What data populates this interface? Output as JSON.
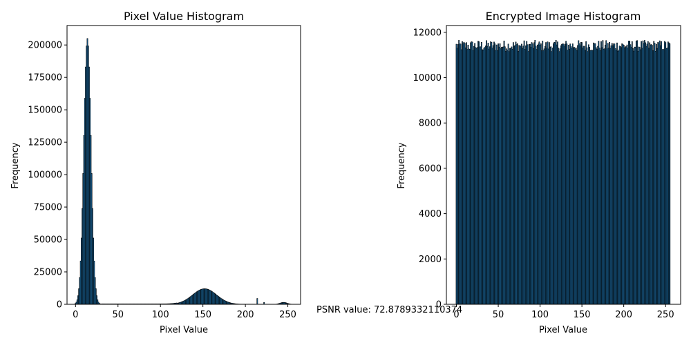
{
  "figure": {
    "psnr_label": "PSNR value: 72.87893321103​74"
  },
  "chart_data": [
    {
      "type": "bar",
      "title": "Pixel Value Histogram",
      "xlabel": "Pixel Value",
      "ylabel": "Frequency",
      "xlim": [
        -10,
        265
      ],
      "ylim": [
        0,
        215000
      ],
      "xticks": [
        0,
        50,
        100,
        150,
        200,
        250
      ],
      "yticks": [
        0,
        25000,
        50000,
        75000,
        100000,
        125000,
        150000,
        175000,
        200000
      ],
      "bar_color": "#1f77b4",
      "edge_color": "#000000",
      "peaks": [
        {
          "center": 14,
          "height": 205000,
          "width": 4.2
        },
        {
          "center": 152,
          "height": 12000,
          "width": 14
        },
        {
          "center": 245,
          "height": 1500,
          "width": 4
        }
      ],
      "spikes": [
        {
          "x": 214,
          "value": 4500
        },
        {
          "x": 222,
          "value": 1500
        }
      ],
      "baseline": 300
    },
    {
      "type": "bar",
      "title": "Encrypted Image Histogram",
      "xlabel": "Pixel Value",
      "ylabel": "Frequency",
      "xlim": [
        -12,
        268
      ],
      "ylim": [
        0,
        12300
      ],
      "xticks": [
        0,
        50,
        100,
        150,
        200,
        250
      ],
      "yticks": [
        0,
        2000,
        4000,
        6000,
        8000,
        10000,
        12000
      ],
      "bar_color": "#1f77b4",
      "edge_color": "#000000",
      "mean_value": 11400,
      "spread": 250
    }
  ]
}
